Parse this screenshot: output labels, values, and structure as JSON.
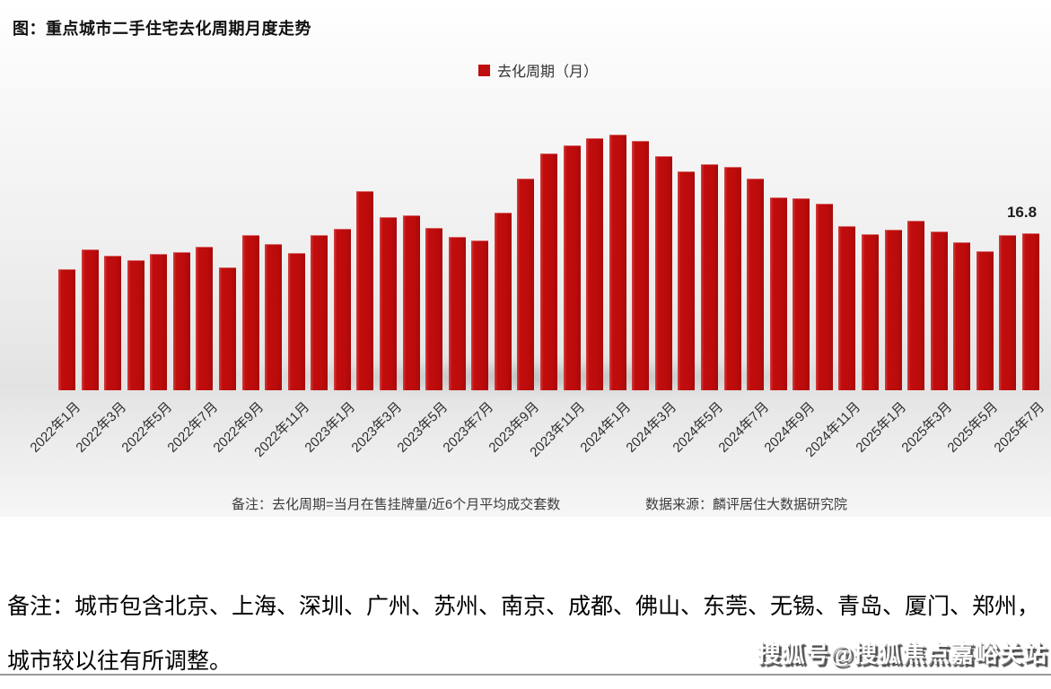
{
  "page": {
    "title": "图：重点城市二手住宅去化周期月度走势"
  },
  "legend": {
    "label": "去化周期（月）"
  },
  "chart_data": {
    "type": "bar",
    "title": "重点城市二手住宅去化周期月度走势",
    "ylabel": "去化周期（月）",
    "xlabel": "",
    "ylim": [
      0,
      30
    ],
    "grid": false,
    "legend_position": "top-center",
    "bar_color": "#c00d0d",
    "x_tick_step": 2,
    "categories": [
      "2022年1月",
      "2022年2月",
      "2022年3月",
      "2022年4月",
      "2022年5月",
      "2022年6月",
      "2022年7月",
      "2022年8月",
      "2022年9月",
      "2022年10月",
      "2022年11月",
      "2022年12月",
      "2023年1月",
      "2023年2月",
      "2023年3月",
      "2023年4月",
      "2023年5月",
      "2023年6月",
      "2023年7月",
      "2023年8月",
      "2023年9月",
      "2023年10月",
      "2023年11月",
      "2023年12月",
      "2024年1月",
      "2024年2月",
      "2024年3月",
      "2024年4月",
      "2024年5月",
      "2024年6月",
      "2024年7月",
      "2024年8月",
      "2024年9月",
      "2024年10月",
      "2024年11月",
      "2024年12月",
      "2025年1月",
      "2025年2月",
      "2025年3月",
      "2025年4月",
      "2025年5月",
      "2025年6月",
      "2025年7月"
    ],
    "values": [
      13.0,
      15.1,
      14.4,
      13.9,
      14.6,
      14.8,
      15.4,
      13.2,
      16.6,
      15.6,
      14.7,
      16.6,
      17.3,
      21.3,
      18.5,
      18.7,
      17.4,
      16.4,
      16.0,
      19.0,
      22.7,
      25.3,
      26.2,
      27.0,
      27.4,
      26.7,
      25.1,
      23.4,
      24.2,
      23.9,
      22.7,
      20.6,
      20.5,
      20.0,
      17.6,
      16.7,
      17.2,
      18.1,
      17.0,
      15.8,
      14.9,
      16.6,
      16.8
    ],
    "annotation": {
      "category": "2025年7月",
      "text": "16.8"
    }
  },
  "footnote": {
    "note": "备注：去化周期=当月在售挂牌量/近6个月平均成交套数",
    "source": "数据来源：麟评居住大数据研究院"
  },
  "bottom_note": {
    "line1": "备注：城市包含北京、上海、深圳、广州、苏州、南京、成都、佛山、东莞、无锡、青岛、厦门、郑州，",
    "line2": "城市较以往有所调整。"
  },
  "watermark": {
    "text": "搜狐号@搜狐焦点嘉峪关站"
  }
}
